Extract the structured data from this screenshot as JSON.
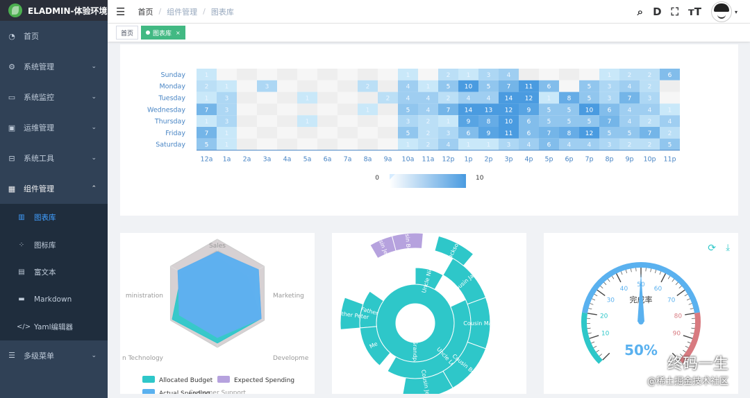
{
  "app": {
    "title": "ELADMIN-体验环境"
  },
  "sidebar": {
    "items": [
      {
        "label": "首页",
        "icon": "dashboard-icon"
      },
      {
        "label": "系统管理",
        "icon": "gear-icon"
      },
      {
        "label": "系统监控",
        "icon": "monitor-icon"
      },
      {
        "label": "运维管理",
        "icon": "server-icon"
      },
      {
        "label": "系统工具",
        "icon": "toolbox-icon"
      },
      {
        "label": "组件管理",
        "icon": "grid-icon"
      }
    ],
    "sub_items": [
      {
        "label": "图表库",
        "icon": "bar-chart-icon"
      },
      {
        "label": "图标库",
        "icon": "icons-icon"
      },
      {
        "label": "富文本",
        "icon": "richtext-icon"
      },
      {
        "label": "Markdown",
        "icon": "markdown-icon"
      },
      {
        "label": "Yaml编辑器",
        "icon": "code-icon"
      }
    ],
    "last_item": {
      "label": "多级菜单",
      "icon": "list-icon"
    }
  },
  "breadcrumb": [
    "首页",
    "组件管理",
    "图表库"
  ],
  "tags": [
    {
      "label": "首页"
    },
    {
      "label": "图表库"
    }
  ],
  "watermark": {
    "line1": "终码一生",
    "line2": "@稀土掘金技术社区"
  },
  "chart_data": [
    {
      "type": "heatmap",
      "days": [
        "Sunday",
        "Monday",
        "Tuesday",
        "Wednesday",
        "Thursday",
        "Friday",
        "Saturday"
      ],
      "hours": [
        "12a",
        "1a",
        "2a",
        "3a",
        "4a",
        "5a",
        "6a",
        "7a",
        "8a",
        "9a",
        "10a",
        "11a",
        "12p",
        "1p",
        "2p",
        "3p",
        "4p",
        "5p",
        "6p",
        "7p",
        "8p",
        "9p",
        "10p",
        "11p"
      ],
      "visual_map": {
        "min": "0",
        "max": "10",
        "colors": [
          "#ffffff",
          "#4a9be0"
        ]
      },
      "values": [
        [
          1,
          0,
          0,
          0,
          0,
          0,
          0,
          0,
          0,
          0,
          1,
          0,
          2,
          1,
          3,
          4,
          0,
          0,
          0,
          0,
          1,
          2,
          2,
          6
        ],
        [
          2,
          1,
          0,
          3,
          0,
          0,
          0,
          0,
          2,
          0,
          4,
          1,
          5,
          10,
          5,
          7,
          11,
          6,
          0,
          5,
          3,
          4,
          2,
          0
        ],
        [
          1,
          3,
          0,
          0,
          0,
          1,
          0,
          0,
          0,
          2,
          4,
          4,
          2,
          4,
          4,
          14,
          12,
          1,
          8,
          5,
          3,
          7,
          3,
          0
        ],
        [
          7,
          3,
          0,
          0,
          0,
          0,
          0,
          0,
          1,
          0,
          5,
          4,
          7,
          14,
          13,
          12,
          9,
          5,
          5,
          10,
          6,
          4,
          4,
          1
        ],
        [
          1,
          3,
          0,
          0,
          0,
          1,
          0,
          0,
          0,
          0,
          3,
          2,
          1,
          9,
          8,
          10,
          6,
          5,
          5,
          5,
          7,
          4,
          2,
          4
        ],
        [
          7,
          1,
          0,
          0,
          0,
          0,
          0,
          0,
          0,
          0,
          5,
          2,
          3,
          6,
          9,
          11,
          6,
          7,
          8,
          12,
          5,
          5,
          7,
          2
        ],
        [
          5,
          1,
          0,
          0,
          0,
          0,
          0,
          0,
          0,
          0,
          1,
          2,
          4,
          1,
          1,
          3,
          4,
          6,
          4,
          4,
          3,
          2,
          2,
          5
        ]
      ]
    },
    {
      "type": "radar",
      "indicators": [
        "Sales",
        "Marketing",
        "Development",
        "Customer Support",
        "Information Technology",
        "Administration"
      ],
      "indicator_labels": [
        "Sales",
        "Marketing",
        "Developme",
        "Customer Support",
        "n Technology",
        "ministration"
      ],
      "max": [
        6500,
        16000,
        30000,
        38000,
        52000,
        25000
      ],
      "series": [
        {
          "name": "Allocated Budget",
          "color": "#2ec7c9",
          "values": [
            4300,
            10000,
            28000,
            35000,
            50000,
            19000
          ]
        },
        {
          "name": "Expected Spending",
          "color": "#b6a2de",
          "values": [
            5000,
            14000,
            28000,
            31000,
            42000,
            21000
          ]
        },
        {
          "name": "Actual Spending",
          "color": "#5ab1ef",
          "values": [
            5000,
            14000,
            28000,
            31000,
            42000,
            21000
          ]
        }
      ],
      "legend": [
        "Allocated Budget",
        "Expected Spending",
        "Actual Spending"
      ]
    },
    {
      "type": "sunburst",
      "segments": [
        {
          "label": "Grandpa",
          "ring": 1,
          "start": -90,
          "end": 270,
          "color": "#2ec7c9"
        },
        {
          "label": "Father",
          "ring": 2,
          "start": 175,
          "end": 215,
          "color": "#2ec7c9"
        },
        {
          "label": "Uncle Leo",
          "ring": 2,
          "start": -25,
          "end": 120,
          "color": "#2ec7c9"
        },
        {
          "label": "Uncle Nigel",
          "ring": 2,
          "start": 270,
          "end": 300,
          "color": "#2ec7c9"
        },
        {
          "label": "Me",
          "ring": 2,
          "start": 130,
          "end": 175,
          "color": "#2ec7c9"
        },
        {
          "label": "Brother Peter",
          "ring": 3,
          "start": 175,
          "end": 200,
          "color": "#2ec7c9"
        },
        {
          "label": "Cousin Jack",
          "ring": 3,
          "start": -60,
          "end": -20,
          "color": "#2ec7c9"
        },
        {
          "label": "Cousin Mary",
          "ring": 3,
          "start": -20,
          "end": 20,
          "color": "#2ec7c9"
        },
        {
          "label": "Cousin Ben",
          "ring": 3,
          "start": 20,
          "end": 60,
          "color": "#2ec7c9"
        },
        {
          "label": "Cousin Jenny",
          "ring": 3,
          "start": 60,
          "end": 100,
          "color": "#2ec7c9"
        },
        {
          "label": "Jackson",
          "ring": 4,
          "start": -75,
          "end": -50,
          "color": "#2ec7c9"
        },
        {
          "label": "Cousin Betty",
          "ring": 4,
          "start": 255,
          "end": 275,
          "color": "#b6a2de"
        },
        {
          "label": "Cousin Jenny",
          "ring": 4,
          "start": 240,
          "end": 255,
          "color": "#b6a2de"
        }
      ]
    },
    {
      "type": "gauge",
      "title": "完成率",
      "value": 50,
      "value_label": "50%",
      "ticks": [
        "10",
        "20",
        "30",
        "40",
        "50",
        "60",
        "70",
        "80",
        "90"
      ]
    }
  ],
  "toolbox": {
    "refresh": "refresh-icon",
    "download": "download-icon"
  }
}
